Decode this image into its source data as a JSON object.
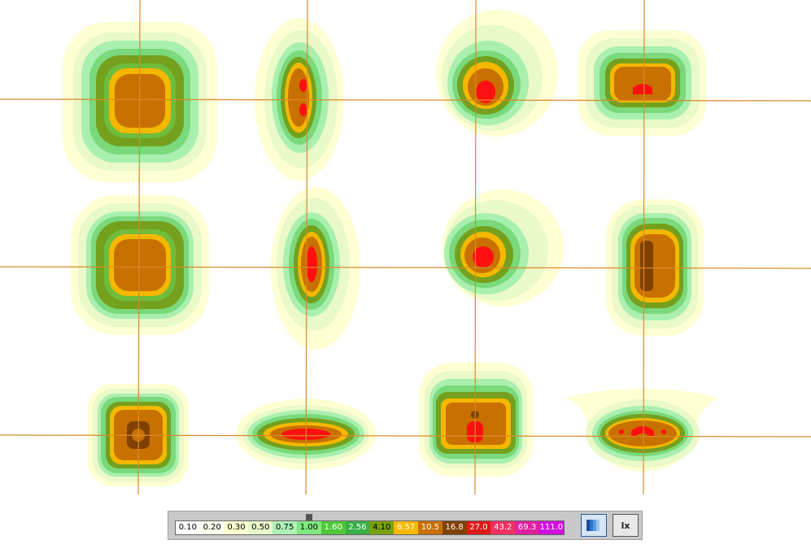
{
  "isolux_plot": {
    "grid_lines_color": "#d98a2b",
    "contour_colors": [
      "#ffffe0",
      "#fdfdc0",
      "#e8f8c0",
      "#c0f0b0",
      "#98ec98",
      "#72dc72",
      "#70a020",
      "#f4b800",
      "#c87000",
      "#ff2020"
    ]
  },
  "legend": {
    "unit_button_label": "lx",
    "color_button_icon": "color-scale-icon",
    "slider_icon": "slider-thumb-icon",
    "levels": [
      {
        "label": "0.10",
        "color": "#ffffff",
        "text_color": "#000000"
      },
      {
        "label": "0.20",
        "color": "#fffff0",
        "text_color": "#000000"
      },
      {
        "label": "0.30",
        "color": "#ffffd0",
        "text_color": "#000000"
      },
      {
        "label": "0.50",
        "color": "#e8f8c8",
        "text_color": "#000000"
      },
      {
        "label": "0.75",
        "color": "#b0f0b8",
        "text_color": "#000000"
      },
      {
        "label": "1.00",
        "color": "#80e880",
        "text_color": "#000000"
      },
      {
        "label": "1.60",
        "color": "#50c838",
        "text_color": "#ffffff"
      },
      {
        "label": "2.56",
        "color": "#38b048",
        "text_color": "#ffffff"
      },
      {
        "label": "4.10",
        "color": "#78a010",
        "text_color": "#000000"
      },
      {
        "label": "6.57",
        "color": "#f8b800",
        "text_color": "#ffffff"
      },
      {
        "label": "10.5",
        "color": "#c87000",
        "text_color": "#ffffff"
      },
      {
        "label": "16.8",
        "color": "#804000",
        "text_color": "#ffffff"
      },
      {
        "label": "27.0",
        "color": "#e01818",
        "text_color": "#ffffff"
      },
      {
        "label": "43.2",
        "color": "#f03060",
        "text_color": "#ffffff"
      },
      {
        "label": "69.3",
        "color": "#e020a0",
        "text_color": "#ffffff"
      },
      {
        "label": "111.0",
        "color": "#d010e0",
        "text_color": "#ffffff"
      }
    ]
  }
}
